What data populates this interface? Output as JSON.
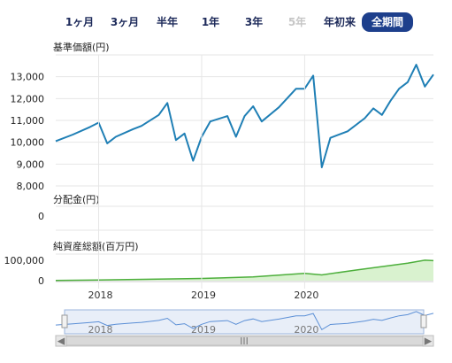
{
  "tabs": {
    "one_month": "1ヶ月",
    "three_months": "3ヶ月",
    "half_year": "半年",
    "one_year": "1年",
    "three_years": "3年",
    "five_years": "5年",
    "ytd": "年初来",
    "all": "全期間"
  },
  "panels": {
    "price_label": "基準価額(円)",
    "dividend_label": "分配金(円)",
    "assets_label": "純資産総額(百万円)"
  },
  "colors": {
    "price_line": "#1f7fb5",
    "assets_line": "#4daf3c",
    "assets_fill": "#d9f2cf",
    "navigator_line": "#5b8fd6",
    "active_tab": "#1d3f8c",
    "disabled_tab": "#c6c6c6"
  },
  "navigator": {
    "left_arrow": "◀",
    "right_arrow": "▶",
    "grip": "III",
    "selection": "all"
  },
  "chart_data": [
    {
      "type": "line",
      "title": "基準価額(円)",
      "ylim": [
        8000,
        14000
      ],
      "yticks": [
        "8,000",
        "9,000",
        "10,000",
        "11,000",
        "12,000",
        "13,000"
      ],
      "grid": true,
      "x": [
        "2017-08",
        "2017-10",
        "2017-12",
        "2018-01",
        "2018-02",
        "2018-03",
        "2018-05",
        "2018-06",
        "2018-08",
        "2018-09",
        "2018-10",
        "2018-11",
        "2018-12",
        "2019-01",
        "2019-02",
        "2019-04",
        "2019-05",
        "2019-06",
        "2019-07",
        "2019-08",
        "2019-10",
        "2019-12",
        "2020-01",
        "2020-02",
        "2020-03",
        "2020-04",
        "2020-06",
        "2020-08",
        "2020-09",
        "2020-10",
        "2020-11",
        "2020-12",
        "2021-01",
        "2021-02",
        "2021-03",
        "2021-04"
      ],
      "series": [
        {
          "values": [
            10050,
            10350,
            10700,
            10900,
            9950,
            10250,
            10600,
            10750,
            11250,
            11800,
            10100,
            10400,
            9150,
            10250,
            10950,
            11200,
            10250,
            11200,
            11650,
            10950,
            11600,
            12450,
            12450,
            13050,
            8850,
            10200,
            10500,
            11100,
            11550,
            11250,
            11900,
            12450,
            12750,
            13550,
            12550,
            13100
          ]
        }
      ]
    },
    {
      "type": "bar",
      "title": "分配金(円)",
      "ylim": [
        0,
        1
      ],
      "yticks": [
        "0"
      ],
      "values": []
    },
    {
      "type": "area",
      "title": "純資産総額(百万円)",
      "ylim": [
        0,
        130000
      ],
      "yticks": [
        "0",
        "100,000"
      ],
      "x": [
        "2017-08",
        "2018-01",
        "2018-07",
        "2019-01",
        "2019-07",
        "2020-01",
        "2020-03",
        "2020-07",
        "2021-01",
        "2021-03",
        "2021-04"
      ],
      "series": [
        {
          "values": [
            1000,
            3000,
            7000,
            11000,
            18000,
            36000,
            28000,
            52000,
            86000,
            100000,
            98000
          ]
        }
      ],
      "xticks": [
        "2018",
        "2019",
        "2020"
      ]
    }
  ]
}
